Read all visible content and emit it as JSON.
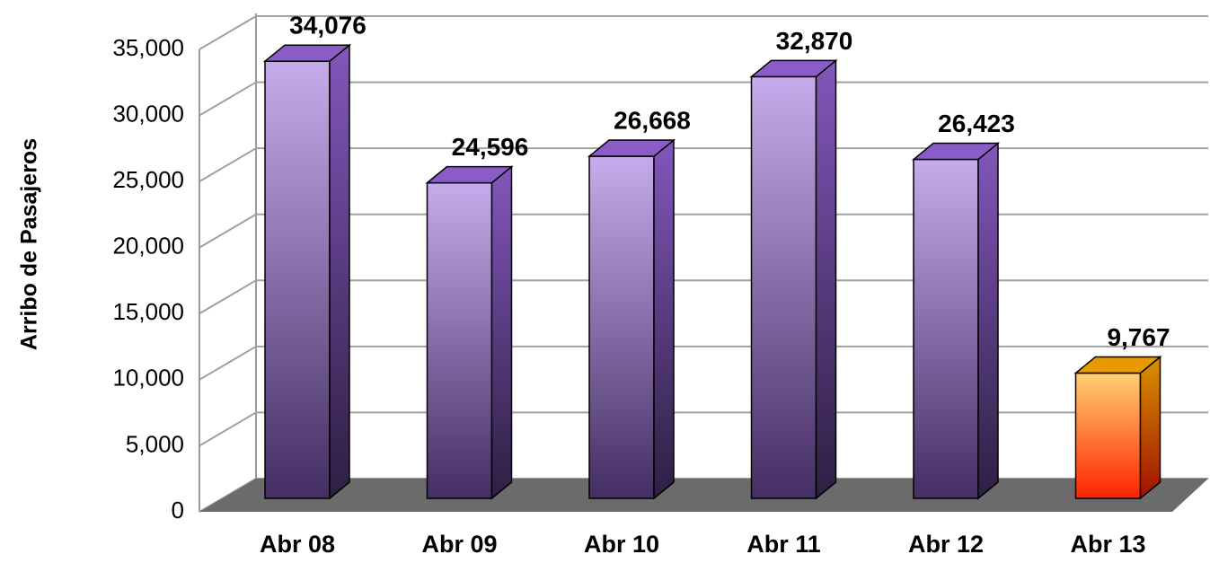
{
  "chart_data": {
    "type": "bar3d",
    "ylabel": "Arribo de Pasajeros",
    "categories": [
      "Abr 08",
      "Abr 09",
      "Abr 10",
      "Abr 11",
      "Abr 12",
      "Abr 13"
    ],
    "values": [
      34076,
      24596,
      26668,
      32870,
      26423,
      9767
    ],
    "value_labels": [
      "34,076",
      "24,596",
      "26,668",
      "32,870",
      "26,423",
      "9,767"
    ],
    "colors": [
      "#9966dd",
      "#9966dd",
      "#9966dd",
      "#9966dd",
      "#9966dd",
      "#ffaa00"
    ],
    "ylim": [
      0,
      35000
    ],
    "yticks": [
      0,
      {
        "value": 5000,
        "label": "5,000"
      },
      {
        "value": 10000,
        "label": "10,000"
      },
      {
        "value": 15000,
        "label": "15,000"
      },
      {
        "value": 20000,
        "label": "20,000"
      },
      {
        "value": 25000,
        "label": "25,000"
      },
      {
        "value": 30000,
        "label": "30,000"
      },
      {
        "value": 35000,
        "label": "35,000"
      }
    ],
    "grid": true
  }
}
